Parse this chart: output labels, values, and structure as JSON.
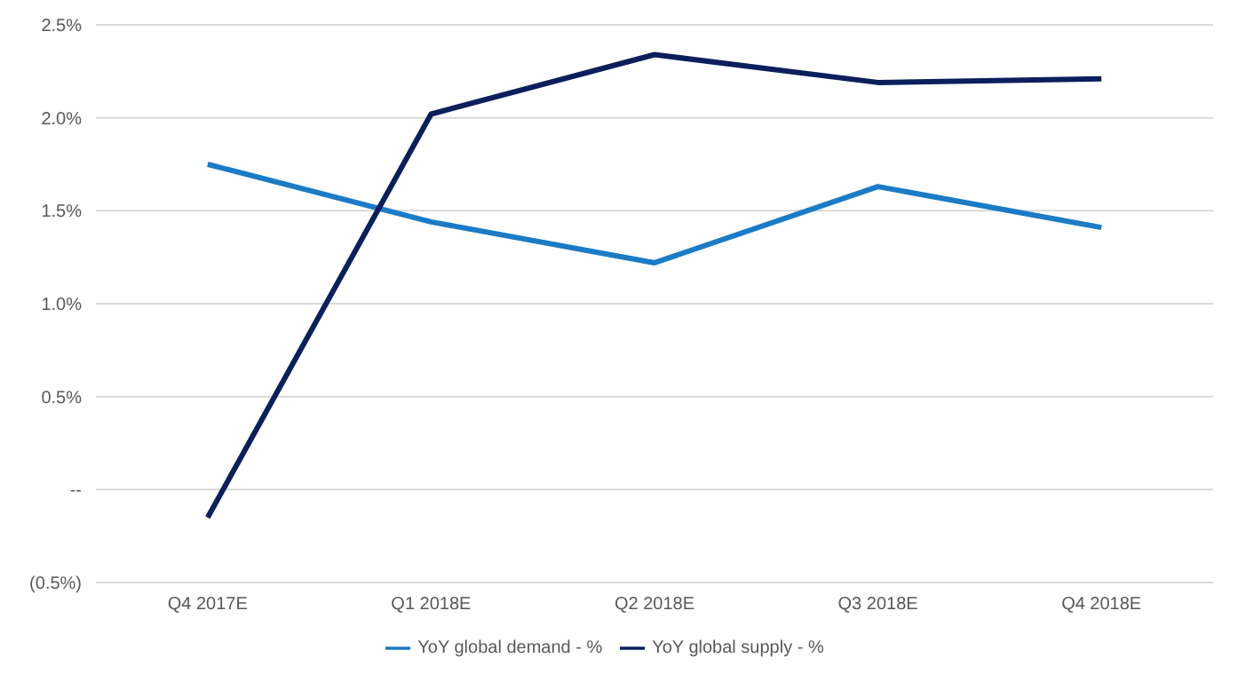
{
  "chart_data": {
    "type": "line",
    "categories": [
      "Q4 2017E",
      "Q1 2018E",
      "Q2 2018E",
      "Q3 2018E",
      "Q4 2018E"
    ],
    "series": [
      {
        "name": "YoY global demand - %",
        "color": "#1b7bc6",
        "values": [
          1.75,
          1.44,
          1.22,
          1.63,
          1.41
        ]
      },
      {
        "name": "YoY global supply - %",
        "color": "#0b1f5c",
        "values": [
          -0.15,
          2.02,
          2.34,
          2.19,
          2.21
        ]
      }
    ],
    "ylim": [
      -0.5,
      2.5
    ],
    "yticks": [
      {
        "value": -0.5,
        "label": "(0.5%)"
      },
      {
        "value": 0,
        "label": "--"
      },
      {
        "value": 0.5,
        "label": "0.5%"
      },
      {
        "value": 1,
        "label": "1.0%"
      },
      {
        "value": 1.5,
        "label": "1.5%"
      },
      {
        "value": 2,
        "label": "2.0%"
      },
      {
        "value": 2.5,
        "label": "2.5%"
      }
    ],
    "grid": "y",
    "legend": "bottom",
    "marker": "none",
    "line_style": "solid"
  }
}
